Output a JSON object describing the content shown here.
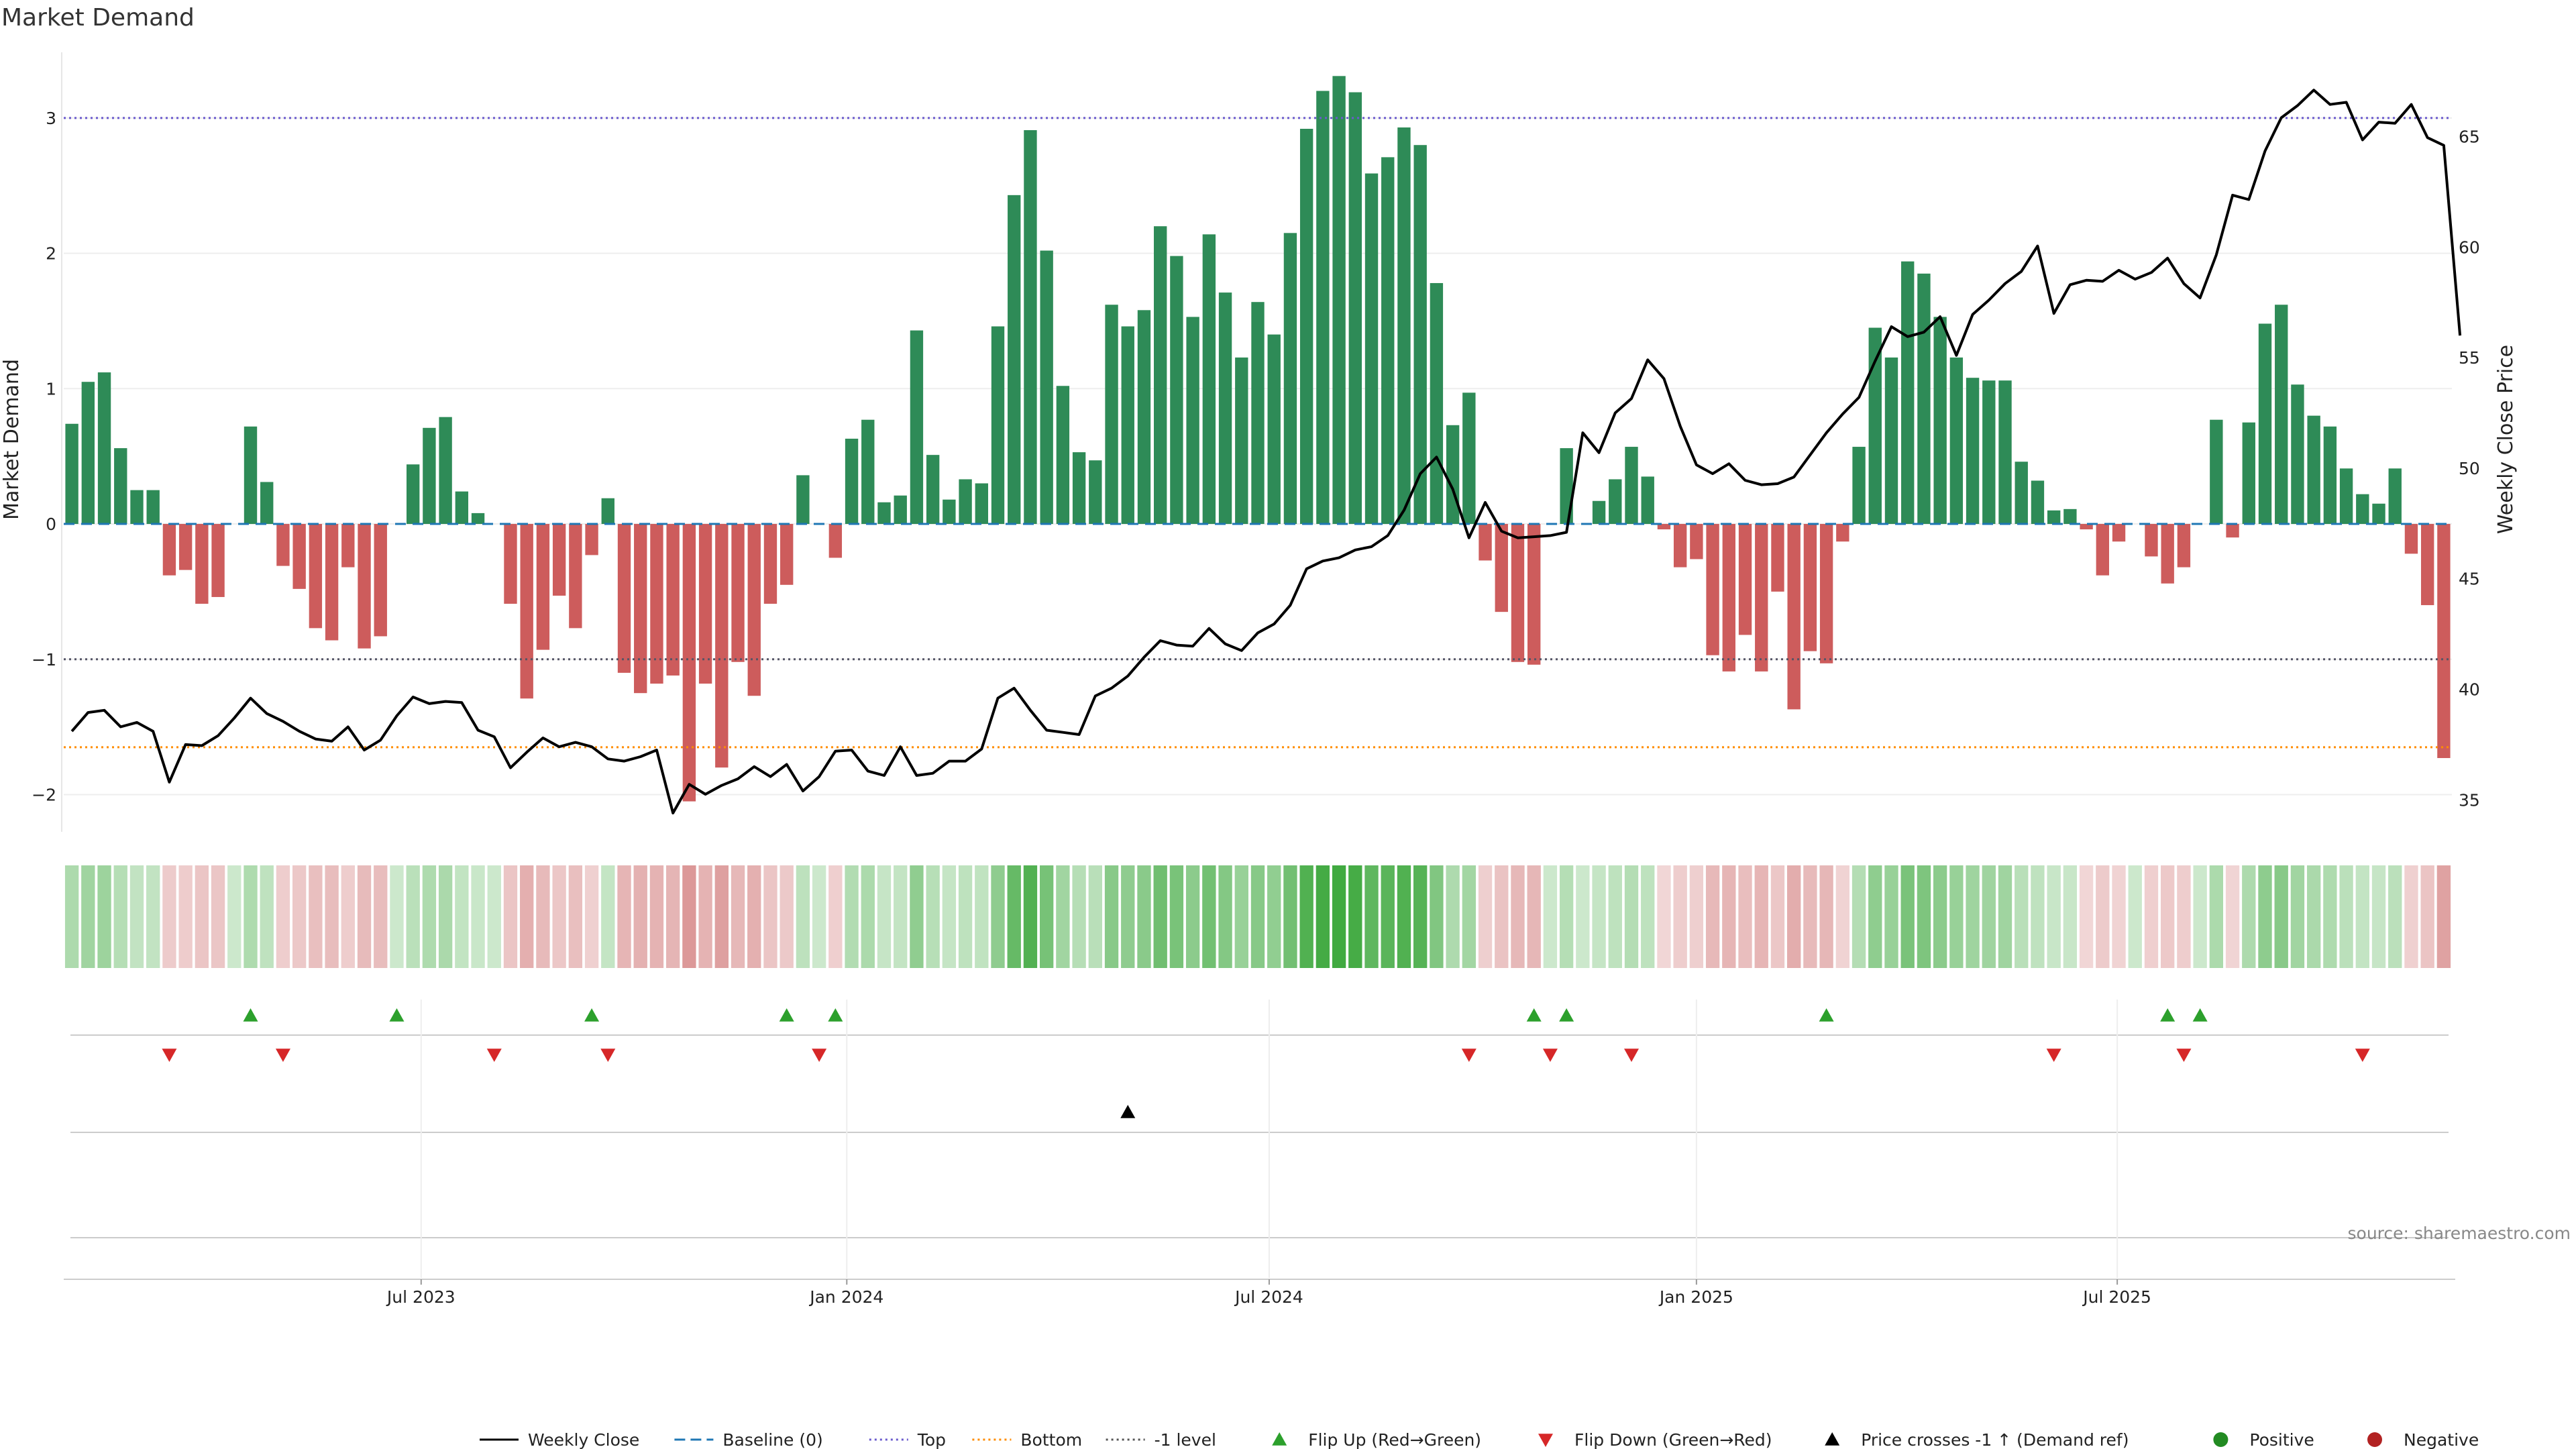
{
  "chart_data": {
    "type": "bar",
    "title": "Market Demand",
    "ylabel_left": "Market Demand",
    "ylabel_right": "Weekly Close Price",
    "source": "source: sharemaestro.com",
    "ylim_left": [
      -2.3,
      3.5
    ],
    "ylim_right": [
      33.4,
      68.9
    ],
    "left_ticks": [
      "3",
      "2",
      "1",
      "0",
      "−1",
      "−2"
    ],
    "left_tick_values": [
      3,
      2,
      1,
      0,
      -1,
      -2
    ],
    "right_ticks": [
      "65",
      "60",
      "55",
      "50",
      "45",
      "40",
      "35"
    ],
    "right_tick_values": [
      65,
      60,
      55,
      50,
      45,
      40,
      35
    ],
    "reference_lines": {
      "top": 3,
      "minus_one": -1,
      "bottom": -1.65,
      "baseline": 0
    },
    "date_start": "2023-01-06",
    "x_ticks": [
      {
        "label": "Jul 2023",
        "index": 21.5
      },
      {
        "label": "Jan 2024",
        "index": 47.7
      },
      {
        "label": "Jul 2024",
        "index": 73.7
      },
      {
        "label": "Jan 2025",
        "index": 100.0
      },
      {
        "label": "Jul 2025",
        "index": 125.9
      }
    ],
    "demand": [
      0.74,
      1.05,
      1.12,
      0.56,
      0.25,
      0.25,
      -0.38,
      -0.34,
      -0.59,
      -0.54,
      0,
      0.72,
      0.31,
      -0.31,
      -0.48,
      -0.77,
      -0.86,
      -0.32,
      -0.92,
      -0.83,
      0,
      0.44,
      0.71,
      0.79,
      0.24,
      0.08,
      0,
      -0.59,
      -1.29,
      -0.93,
      -0.53,
      -0.77,
      -0.23,
      0.19,
      -1.1,
      -1.25,
      -1.18,
      -1.12,
      -2.05,
      -1.18,
      -1.8,
      -1.02,
      -1.27,
      -0.59,
      -0.45,
      0.36,
      0,
      -0.25,
      0.63,
      0.77,
      0.16,
      0.21,
      1.43,
      0.51,
      0.18,
      0.33,
      0.3,
      1.46,
      2.43,
      2.91,
      2.02,
      1.02,
      0.53,
      0.47,
      1.62,
      1.46,
      1.58,
      2.2,
      1.98,
      1.53,
      2.14,
      1.71,
      1.23,
      1.64,
      1.4,
      2.15,
      2.92,
      3.2,
      3.31,
      3.19,
      2.59,
      2.71,
      2.93,
      2.8,
      1.78,
      0.73,
      0.97,
      -0.27,
      -0.65,
      -1.02,
      -1.04,
      0,
      0.56,
      0,
      0.17,
      0.33,
      0.57,
      0.35,
      -0.04,
      -0.32,
      -0.26,
      -0.97,
      -1.09,
      -0.82,
      -1.09,
      -0.5,
      -1.37,
      -0.94,
      -1.03,
      -0.13,
      0.57,
      1.45,
      1.23,
      1.94,
      1.85,
      1.53,
      1.23,
      1.08,
      1.06,
      1.06,
      0.46,
      0.32,
      0.1,
      0.11,
      -0.04,
      -0.38,
      -0.13,
      0,
      -0.24,
      -0.44,
      -0.32,
      0,
      0.77,
      -0.1,
      0.75,
      1.48,
      1.62,
      1.03,
      0.8,
      0.72,
      0.41,
      0.22,
      0.15,
      0.41,
      -0.22,
      -0.6,
      -1.73
    ],
    "close": [
      38.1,
      38.95,
      39.05,
      38.3,
      38.5,
      38.1,
      35.8,
      37.5,
      37.45,
      37.9,
      38.7,
      39.6,
      38.9,
      38.55,
      38.1,
      37.75,
      37.65,
      38.3,
      37.25,
      37.7,
      38.8,
      39.65,
      39.35,
      39.45,
      39.4,
      38.15,
      37.85,
      36.45,
      37.15,
      37.8,
      37.4,
      37.6,
      37.4,
      36.85,
      36.75,
      36.95,
      37.25,
      34.4,
      35.7,
      35.25,
      35.65,
      35.95,
      36.5,
      36.05,
      36.6,
      35.4,
      36.05,
      37.2,
      37.25,
      36.3,
      36.1,
      37.4,
      36.1,
      36.2,
      36.75,
      36.75,
      37.3,
      39.6,
      40.05,
      39.05,
      38.15,
      38.05,
      37.95,
      39.7,
      40.05,
      40.6,
      41.45,
      42.2,
      42.0,
      41.95,
      42.75,
      42.05,
      41.75,
      42.55,
      42.95,
      43.8,
      45.45,
      45.8,
      45.95,
      46.3,
      46.45,
      46.95,
      48.1,
      49.75,
      50.5,
      49.05,
      46.85,
      48.45,
      47.15,
      46.85,
      46.9,
      46.95,
      47.1,
      51.6,
      50.7,
      52.5,
      53.15,
      54.9,
      54.05,
      51.9,
      50.15,
      49.75,
      50.2,
      49.45,
      49.25,
      49.3,
      49.6,
      50.6,
      51.6,
      52.45,
      53.2,
      54.85,
      56.4,
      55.95,
      56.15,
      56.85,
      55.1,
      56.95,
      57.6,
      58.35,
      58.9,
      60.05,
      57.0,
      58.3,
      58.5,
      58.45,
      58.95,
      58.55,
      58.85,
      59.5,
      58.35,
      57.7,
      59.65,
      62.35,
      62.15,
      64.35,
      65.85,
      66.4,
      67.1,
      66.45,
      66.55,
      64.85,
      65.65,
      65.6,
      66.45,
      64.95,
      64.6,
      56.0
    ],
    "markers": {
      "flip_up": [
        11,
        20,
        32,
        44,
        47,
        90,
        92,
        108,
        129,
        131
      ],
      "flip_down": [
        6,
        13,
        26,
        33,
        46,
        86,
        91,
        96,
        122,
        130,
        141
      ],
      "price_cross": [
        65
      ]
    },
    "legend": [
      {
        "label": "Weekly Close",
        "kind": "line-solid",
        "color": "#000000"
      },
      {
        "label": "Baseline (0)",
        "kind": "line-dash",
        "color": "#1f77b4"
      },
      {
        "label": "Top",
        "kind": "line-dot",
        "color": "#6a5acd"
      },
      {
        "label": "Bottom",
        "kind": "line-dot",
        "color": "#ff8c00"
      },
      {
        "label": "-1 level",
        "kind": "line-dot",
        "color": "#555555"
      },
      {
        "label": "Flip Up (Red→Green)",
        "kind": "tri-up",
        "color": "#2ca02c"
      },
      {
        "label": "Flip Down (Green→Red)",
        "kind": "tri-down",
        "color": "#d62728"
      },
      {
        "label": "Price crosses -1 ↑ (Demand ref)",
        "kind": "tri-up",
        "color": "#000000"
      },
      {
        "label": "Positive",
        "kind": "dot",
        "color": "#228b22"
      },
      {
        "label": "Negative",
        "kind": "dot",
        "color": "#b22222"
      }
    ],
    "colors": {
      "positive_bar": "#2e8b57",
      "negative_bar": "#cd5c5c",
      "heat_positive": "#2ca02c",
      "heat_negative": "#c04848",
      "flip_up": "#2ca02c",
      "flip_down": "#d62728"
    }
  }
}
